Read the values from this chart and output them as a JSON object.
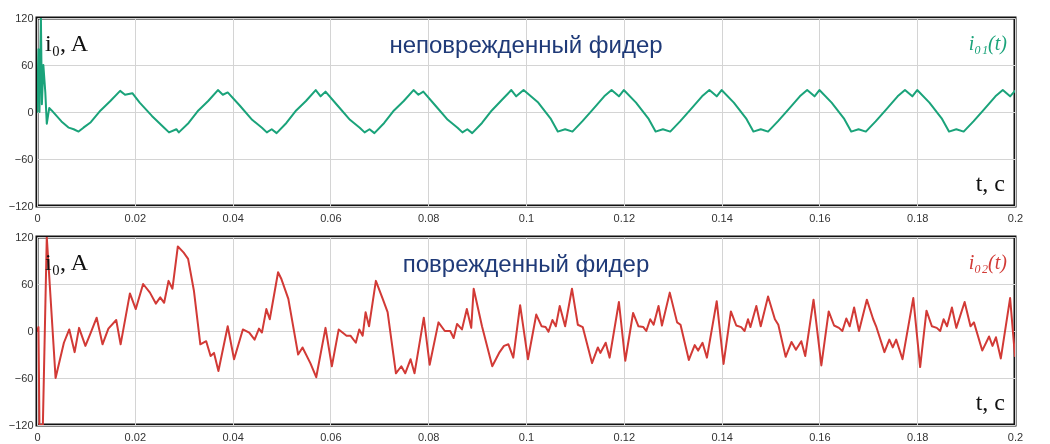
{
  "chart_data": [
    {
      "type": "line",
      "title": "неповрежденный фидер",
      "xlabel": "t, c",
      "ylabel": "i₀, A",
      "xlim": [
        0,
        0.2
      ],
      "xticks": [
        0,
        0.02,
        0.04,
        0.06,
        0.08,
        0.1,
        0.12,
        0.14,
        0.16,
        0.18,
        0.2
      ],
      "ylim": [
        -120,
        120
      ],
      "yticks": [
        -120,
        -60,
        0,
        60,
        120
      ],
      "grid": true,
      "series": [
        {
          "name": "i₀₁(t)",
          "color": "#1aa37a",
          "x": [
            0,
            0.0003,
            0.0005,
            0.0008,
            0.001,
            0.0013,
            0.0017,
            0.002,
            0.0025,
            0.003,
            0.004,
            0.005,
            0.0065,
            0.0075,
            0.0085,
            0.0095,
            0.011,
            0.013,
            0.015,
            0.017,
            0.018,
            0.0195,
            0.021,
            0.0235,
            0.026,
            0.027,
            0.0285,
            0.029,
            0.031,
            0.033,
            0.035,
            0.037,
            0.038,
            0.039,
            0.0415,
            0.044,
            0.046,
            0.047,
            0.048,
            0.049,
            0.051,
            0.053,
            0.055,
            0.057,
            0.058,
            0.059,
            0.0615,
            0.064,
            0.066,
            0.067,
            0.068,
            0.069,
            0.071,
            0.073,
            0.075,
            0.077,
            0.078,
            0.079,
            0.0815,
            0.084,
            0.086,
            0.087,
            0.088,
            0.089,
            0.091,
            0.093,
            0.095,
            0.097,
            0.098,
            0.0995,
            0.1025,
            0.105,
            0.1065,
            0.108,
            0.1095,
            0.1115,
            0.1135,
            0.116,
            0.1175,
            0.119,
            0.12,
            0.1225,
            0.125,
            0.1265,
            0.128,
            0.1295,
            0.1315,
            0.1335,
            0.136,
            0.1375,
            0.139,
            0.14,
            0.1425,
            0.145,
            0.1465,
            0.148,
            0.1495,
            0.1515,
            0.1535,
            0.156,
            0.1575,
            0.159,
            0.16,
            0.1625,
            0.165,
            0.1665,
            0.168,
            0.1695,
            0.1715,
            0.1735,
            0.176,
            0.1775,
            0.179,
            0.18,
            0.1825,
            0.185,
            0.1865,
            0.188,
            0.1895,
            0.1915,
            0.1935,
            0.196,
            0.1975,
            0.199,
            0.2
          ],
          "values": [
            0,
            80,
            0,
            120,
            10,
            60,
            25,
            -15,
            5,
            2,
            -5,
            -12,
            -20,
            -22,
            -25,
            -20,
            -13,
            2,
            14,
            27,
            22,
            24,
            12,
            -5,
            -20,
            -26,
            -22,
            -26,
            -14,
            2,
            14,
            28,
            22,
            25,
            8,
            -10,
            -20,
            -26,
            -22,
            -27,
            -14,
            2,
            14,
            28,
            20,
            26,
            8,
            -10,
            -20,
            -26,
            -22,
            -27,
            -14,
            2,
            14,
            28,
            22,
            26,
            8,
            -10,
            -20,
            -26,
            -22,
            -27,
            -14,
            2,
            15,
            28,
            20,
            28,
            12,
            -8,
            -25,
            -22,
            -25,
            -12,
            2,
            20,
            28,
            20,
            28,
            12,
            -8,
            -25,
            -22,
            -25,
            -12,
            2,
            20,
            28,
            20,
            28,
            12,
            -8,
            -25,
            -22,
            -25,
            -12,
            2,
            20,
            28,
            20,
            28,
            12,
            -8,
            -25,
            -22,
            -25,
            -12,
            2,
            20,
            28,
            20,
            28,
            12,
            -8,
            -25,
            -22,
            -25,
            -12,
            2,
            20,
            28,
            20,
            27
          ]
        }
      ]
    },
    {
      "type": "line",
      "title": "поврежденный фидер",
      "xlabel": "t, c",
      "ylabel": "i₀, A",
      "xlim": [
        0,
        0.2
      ],
      "xticks": [
        0,
        0.02,
        0.04,
        0.06,
        0.08,
        0.1,
        0.12,
        0.14,
        0.16,
        0.18,
        0.2
      ],
      "ylim": [
        -120,
        120
      ],
      "yticks": [
        -120,
        -60,
        0,
        60,
        120
      ],
      "grid": true,
      "series": [
        {
          "name": "i₀₂(t)",
          "color": "#d23a36",
          "x": [
            0,
            0.0003,
            0.0005,
            0.0012,
            0.002,
            0.0038,
            0.0055,
            0.0066,
            0.0077,
            0.0086,
            0.0099,
            0.011,
            0.0122,
            0.0134,
            0.0146,
            0.0162,
            0.0171,
            0.019,
            0.0202,
            0.0217,
            0.0231,
            0.0243,
            0.0252,
            0.026,
            0.0269,
            0.0277,
            0.0288,
            0.03,
            0.0309,
            0.0321,
            0.0334,
            0.0346,
            0.0355,
            0.0362,
            0.0371,
            0.039,
            0.0403,
            0.0421,
            0.0434,
            0.0445,
            0.0454,
            0.046,
            0.0469,
            0.0476,
            0.0493,
            0.05,
            0.0514,
            0.0534,
            0.0543,
            0.0559,
            0.0571,
            0.059,
            0.0603,
            0.0617,
            0.0633,
            0.0641,
            0.0652,
            0.0659,
            0.0666,
            0.0672,
            0.0679,
            0.0693,
            0.0707,
            0.0717,
            0.0734,
            0.0745,
            0.0753,
            0.0764,
            0.0772,
            0.0791,
            0.0803,
            0.0821,
            0.0834,
            0.0845,
            0.0852,
            0.0859,
            0.0869,
            0.0879,
            0.0888,
            0.0893,
            0.091,
            0.0931,
            0.0945,
            0.0955,
            0.0964,
            0.0974,
            0.0988,
            0.1004,
            0.1021,
            0.1032,
            0.104,
            0.1046,
            0.1054,
            0.1061,
            0.1069,
            0.108,
            0.1094,
            0.1106,
            0.1116,
            0.1135,
            0.1147,
            0.1152,
            0.1163,
            0.1171,
            0.119,
            0.1203,
            0.1219,
            0.123,
            0.124,
            0.1246,
            0.1254,
            0.1261,
            0.1271,
            0.1278,
            0.1294,
            0.1309,
            0.1316,
            0.1333,
            0.1345,
            0.1352,
            0.1361,
            0.137,
            0.139,
            0.1404,
            0.1419,
            0.143,
            0.144,
            0.1447,
            0.1454,
            0.1459,
            0.1471,
            0.148,
            0.1495,
            0.1509,
            0.1516,
            0.1531,
            0.1543,
            0.1552,
            0.1563,
            0.1571,
            0.1588,
            0.1604,
            0.1619,
            0.163,
            0.164,
            0.1647,
            0.1655,
            0.1662,
            0.1671,
            0.1681,
            0.1697,
            0.171,
            0.1716,
            0.1733,
            0.1743,
            0.175,
            0.1757,
            0.177,
            0.1792,
            0.1806,
            0.1819,
            0.183,
            0.184,
            0.1847,
            0.1854,
            0.1861,
            0.1871,
            0.188,
            0.1897,
            0.1909,
            0.1916,
            0.1933,
            0.1947,
            0.1954,
            0.1961,
            0.1971,
            0.199,
            0.2
          ],
          "values": [
            0,
            5,
            -120,
            -120,
            120,
            -60,
            -15,
            2,
            -27,
            4,
            -19,
            -2,
            17,
            -17,
            3,
            14,
            -17,
            48,
            28,
            60,
            49,
            35,
            43,
            36,
            64,
            54,
            108,
            100,
            92,
            51,
            -17,
            -13,
            -32,
            -28,
            -51,
            6,
            -36,
            2,
            -2,
            -11,
            3,
            -2,
            28,
            15,
            75,
            66,
            41,
            -30,
            -21,
            -41,
            -59,
            4,
            -45,
            2,
            -6,
            -6,
            -15,
            2,
            -6,
            24,
            6,
            64,
            41,
            24,
            -54,
            -45,
            -54,
            -36,
            -54,
            17,
            -43,
            11,
            0,
            0,
            -9,
            9,
            2,
            28,
            4,
            54,
            6,
            -45,
            -28,
            -19,
            -17,
            -34,
            33,
            -36,
            21,
            6,
            5,
            -1,
            14,
            6,
            32,
            6,
            54,
            8,
            5,
            -41,
            -21,
            -28,
            -15,
            -34,
            37,
            -38,
            23,
            6,
            5,
            0,
            15,
            8,
            32,
            7,
            49,
            11,
            8,
            -37,
            -18,
            -25,
            -15,
            -34,
            38,
            -42,
            25,
            7,
            5,
            0,
            15,
            5,
            32,
            6,
            44,
            15,
            8,
            -33,
            -14,
            -24,
            -13,
            -32,
            40,
            -44,
            25,
            7,
            4,
            0,
            16,
            6,
            30,
            0,
            40,
            15,
            6,
            -27,
            -11,
            -21,
            -11,
            -36,
            42,
            -46,
            26,
            6,
            4,
            0,
            15,
            6,
            30,
            4,
            37,
            6,
            11,
            -25,
            -7,
            -19,
            -8,
            -35,
            42,
            -32
          ]
        }
      ]
    }
  ]
}
